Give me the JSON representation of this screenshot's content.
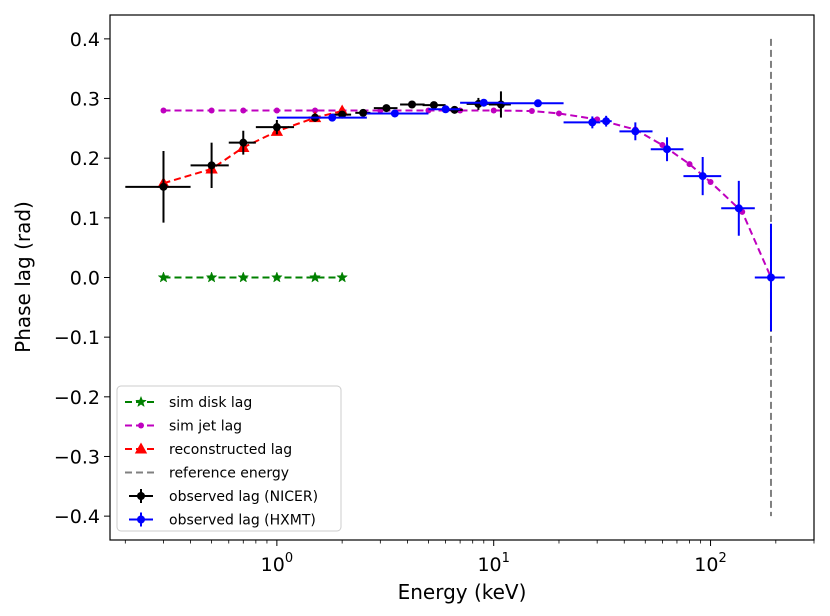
{
  "chart_data": {
    "type": "line",
    "title": "",
    "xlabel": "Energy (keV)",
    "ylabel": "Phase lag (rad)",
    "xscale": "log",
    "xlim": [
      0.17,
      300
    ],
    "ylim": [
      -0.44,
      0.44
    ],
    "grid": false,
    "legend_position": "bottom-left",
    "x_ticks": [
      {
        "value": 1,
        "base": "10",
        "exp": "0"
      },
      {
        "value": 10,
        "base": "10",
        "exp": "1"
      },
      {
        "value": 100,
        "base": "10",
        "exp": "2"
      }
    ],
    "y_ticks": [
      {
        "value": 0.4,
        "label": "0.4"
      },
      {
        "value": 0.3,
        "label": "0.3"
      },
      {
        "value": 0.2,
        "label": "0.2"
      },
      {
        "value": 0.1,
        "label": "0.1"
      },
      {
        "value": 0.0,
        "label": "0.0"
      },
      {
        "value": -0.1,
        "label": "−0.1"
      },
      {
        "value": -0.2,
        "label": "−0.2"
      },
      {
        "value": -0.3,
        "label": "−0.3"
      },
      {
        "value": -0.4,
        "label": "−0.4"
      }
    ],
    "series": [
      {
        "name": "sim disk lag",
        "kind": "line",
        "color": "#008000",
        "marker": "star",
        "x": [
          0.3,
          0.5,
          0.7,
          1.0,
          1.5,
          2.0
        ],
        "y": [
          0.0,
          0.0,
          0.0,
          0.0,
          0.0,
          0.0
        ]
      },
      {
        "name": "sim jet lag",
        "kind": "line",
        "color": "#bf00bf",
        "marker": "dot",
        "x": [
          0.3,
          0.5,
          0.7,
          1.0,
          1.5,
          2.0,
          3.0,
          5.0,
          7.0,
          10.0,
          15.0,
          20.0,
          30.0,
          45.0,
          60.0,
          80.0,
          100.0,
          140.0,
          190.0
        ],
        "y": [
          0.28,
          0.28,
          0.28,
          0.28,
          0.28,
          0.28,
          0.28,
          0.28,
          0.28,
          0.28,
          0.279,
          0.275,
          0.265,
          0.248,
          0.222,
          0.19,
          0.16,
          0.11,
          0.0
        ]
      },
      {
        "name": "reconstructed lag",
        "kind": "line",
        "color": "#ff0000",
        "marker": "triangle",
        "x": [
          0.3,
          0.5,
          0.7,
          1.0,
          1.5,
          2.0
        ],
        "y": [
          0.158,
          0.182,
          0.218,
          0.245,
          0.268,
          0.279
        ]
      },
      {
        "name": "reference energy",
        "kind": "vline",
        "color": "#808080",
        "x": 190,
        "y_range": [
          -0.4,
          0.4
        ]
      },
      {
        "name": "observed lag (NICER)",
        "kind": "errorbar",
        "color": "#000000",
        "points": [
          {
            "x": 0.3,
            "xlo": 0.2,
            "xhi": 0.4,
            "y": 0.152,
            "yerr": 0.06
          },
          {
            "x": 0.5,
            "xlo": 0.4,
            "xhi": 0.6,
            "y": 0.188,
            "yerr": 0.038
          },
          {
            "x": 0.7,
            "xlo": 0.6,
            "xhi": 0.8,
            "y": 0.226,
            "yerr": 0.02
          },
          {
            "x": 1.0,
            "xlo": 0.8,
            "xhi": 1.2,
            "y": 0.252,
            "yerr": 0.012
          },
          {
            "x": 1.5,
            "xlo": 1.4,
            "xhi": 1.6,
            "y": 0.268,
            "yerr": 0.007
          },
          {
            "x": 2.0,
            "xlo": 1.8,
            "xhi": 2.2,
            "y": 0.273,
            "yerr": 0.006
          },
          {
            "x": 2.5,
            "xlo": 2.3,
            "xhi": 2.7,
            "y": 0.276,
            "yerr": 0.005
          },
          {
            "x": 3.2,
            "xlo": 2.8,
            "xhi": 3.6,
            "y": 0.284,
            "yerr": 0.005
          },
          {
            "x": 4.2,
            "xlo": 3.7,
            "xhi": 4.8,
            "y": 0.29,
            "yerr": 0.005
          },
          {
            "x": 5.3,
            "xlo": 4.7,
            "xhi": 6.0,
            "y": 0.289,
            "yerr": 0.005
          },
          {
            "x": 6.6,
            "xlo": 6.0,
            "xhi": 7.2,
            "y": 0.281,
            "yerr": 0.006
          },
          {
            "x": 8.5,
            "xlo": 7.5,
            "xhi": 9.5,
            "y": 0.291,
            "yerr": 0.01
          },
          {
            "x": 10.8,
            "xlo": 9.5,
            "xhi": 12.0,
            "y": 0.29,
            "yerr": 0.022
          }
        ]
      },
      {
        "name": "observed lag (HXMT)",
        "kind": "errorbar",
        "color": "#0000ff",
        "points": [
          {
            "x": 1.8,
            "xlo": 1.0,
            "xhi": 2.6,
            "y": 0.268,
            "yerr": 0.004
          },
          {
            "x": 3.5,
            "xlo": 2.6,
            "xhi": 5.0,
            "y": 0.275,
            "yerr": 0.004
          },
          {
            "x": 6.0,
            "xlo": 5.0,
            "xhi": 7.0,
            "y": 0.282,
            "yerr": 0.005
          },
          {
            "x": 9.0,
            "xlo": 7.0,
            "xhi": 11.0,
            "y": 0.293,
            "yerr": 0.005
          },
          {
            "x": 16.0,
            "xlo": 11.0,
            "xhi": 21.0,
            "y": 0.292,
            "yerr": 0.005
          },
          {
            "x": 28.5,
            "xlo": 21.0,
            "xhi": 31.0,
            "y": 0.26,
            "yerr": 0.01
          },
          {
            "x": 33.0,
            "xlo": 31.0,
            "xhi": 35.0,
            "y": 0.262,
            "yerr": 0.009
          },
          {
            "x": 45.0,
            "xlo": 38.0,
            "xhi": 54.0,
            "y": 0.245,
            "yerr": 0.015
          },
          {
            "x": 63.0,
            "xlo": 53.0,
            "xhi": 75.0,
            "y": 0.215,
            "yerr": 0.02
          },
          {
            "x": 92.0,
            "xlo": 75.0,
            "xhi": 112.0,
            "y": 0.17,
            "yerr": 0.032
          },
          {
            "x": 135.0,
            "xlo": 112.0,
            "xhi": 160.0,
            "y": 0.116,
            "yerr": 0.046
          },
          {
            "x": 190.0,
            "xlo": 160.0,
            "xhi": 220.0,
            "y": 0.0,
            "yerr": 0.09
          }
        ]
      }
    ]
  }
}
